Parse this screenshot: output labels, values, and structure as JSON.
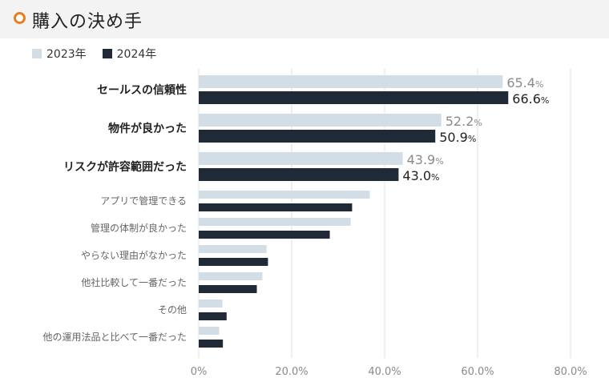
{
  "title": "購入の決め手",
  "colors": {
    "accent": "#e67e22",
    "series2023": "#d3dde5",
    "series2024": "#1f2a36",
    "grid": "#e6e6e6"
  },
  "chart_data": {
    "type": "bar",
    "orientation": "horizontal",
    "categories": [
      "セールスの信頼性",
      "物件が良かった",
      "リスクが許容範囲だった",
      "アプリで管理できる",
      "管理の体制が良かった",
      "やらない理由がなかった",
      "他社比較して一番だった",
      "その他",
      "他の運用法品と比べて一番だった"
    ],
    "highlighted_categories": 3,
    "series": [
      {
        "name": "2023年",
        "values": [
          65.4,
          52.2,
          43.9,
          36.8,
          32.7,
          14.6,
          13.7,
          5.1,
          4.4
        ]
      },
      {
        "name": "2024年",
        "values": [
          66.6,
          50.9,
          43.0,
          33.0,
          28.2,
          14.9,
          12.5,
          6.0,
          5.2
        ]
      }
    ],
    "data_labels": {
      "2023年": [
        "65.4",
        "52.2",
        "43.9"
      ],
      "2024年": [
        "66.6",
        "50.9",
        "43.0"
      ],
      "unit": "%"
    },
    "xlim": [
      0,
      80
    ],
    "xticks": [
      "0%",
      "20.0%",
      "40.0%",
      "60.0%",
      "80.0%"
    ],
    "grid": true,
    "legend": "top-left"
  }
}
